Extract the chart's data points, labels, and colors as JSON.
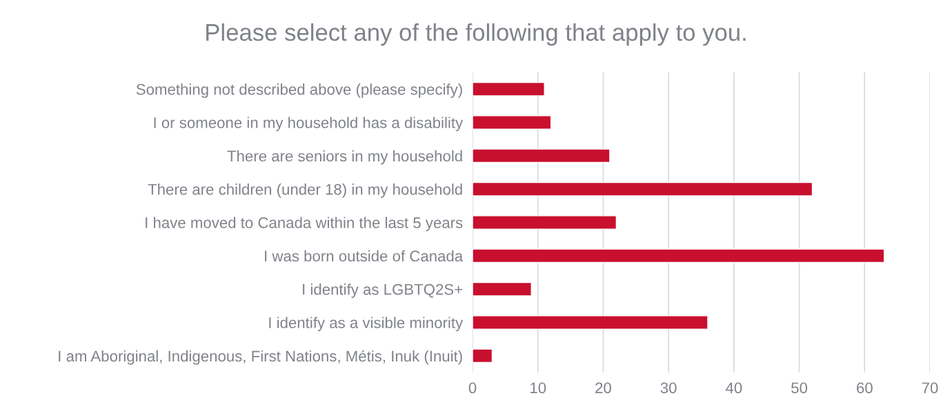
{
  "chart_data": {
    "type": "bar",
    "orientation": "horizontal",
    "title": "Please select any of the following that apply to you.",
    "categories": [
      "Something not described above (please specify)",
      "I or someone in my household has a disability",
      "There are seniors in my household",
      "There are children (under 18) in my household",
      "I have moved to Canada within the last 5 years",
      "I was born outside of Canada",
      "I identify as LGBTQ2S+",
      "I identify as a visible minority",
      "I am Aboriginal, Indigenous, First Nations, Métis, Inuk (Inuit)"
    ],
    "values": [
      11,
      12,
      21,
      52,
      22,
      63,
      9,
      36,
      3
    ],
    "color": "#c8102e",
    "xlim": [
      0,
      70
    ],
    "xticks": [
      0,
      10,
      20,
      30,
      40,
      50,
      60,
      70
    ],
    "grid": "x"
  }
}
